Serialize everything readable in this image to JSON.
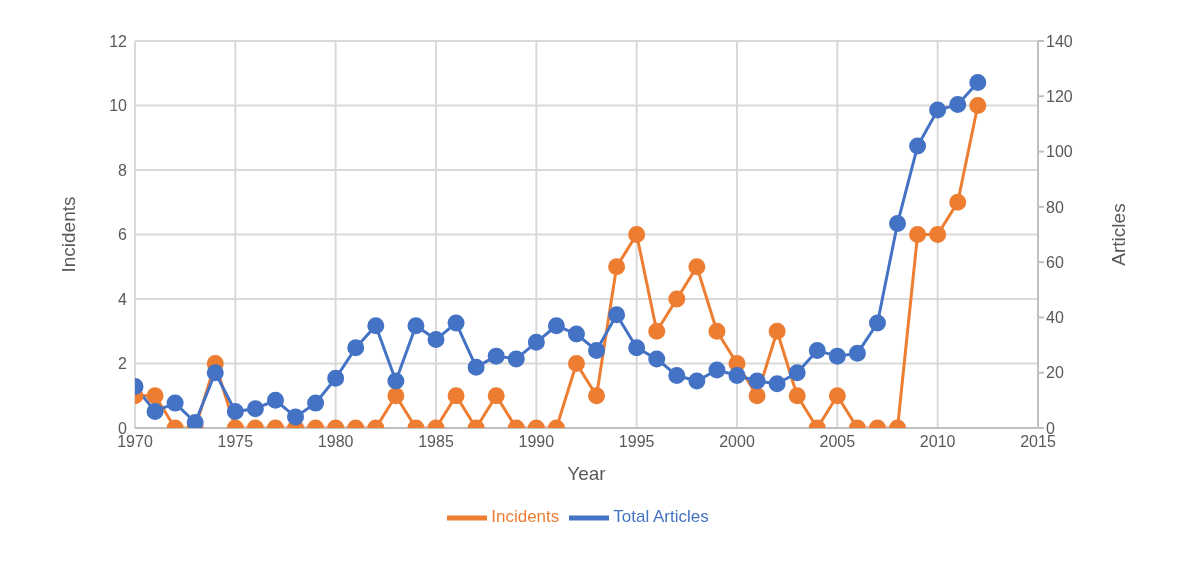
{
  "chart_data": {
    "type": "line",
    "xlabel": "Year",
    "ylabel": "Incidents",
    "y2label": "Articles",
    "x": [
      1970,
      1971,
      1972,
      1973,
      1974,
      1975,
      1976,
      1977,
      1978,
      1979,
      1980,
      1981,
      1982,
      1983,
      1984,
      1985,
      1986,
      1987,
      1988,
      1989,
      1990,
      1991,
      1992,
      1993,
      1994,
      1995,
      1996,
      1997,
      1998,
      1999,
      2000,
      2001,
      2002,
      2003,
      2004,
      2005,
      2006,
      2007,
      2008,
      2009,
      2010,
      2011,
      2012
    ],
    "series": [
      {
        "name": "Incidents",
        "color": "#ed7d31",
        "values": [
          1,
          1,
          0,
          0,
          2,
          0,
          0,
          0,
          0,
          0,
          0,
          0,
          0,
          1,
          0,
          0,
          1,
          0,
          1,
          0,
          0,
          0,
          2,
          1,
          5,
          6,
          3,
          4,
          5,
          3,
          2,
          1,
          3,
          1,
          0,
          1,
          0,
          0,
          0,
          6,
          6,
          7,
          10
        ]
      },
      {
        "name": "Total Articles",
        "color": "#4472c4",
        "axis": "y2",
        "values": [
          15,
          6,
          9,
          2,
          20,
          6,
          7,
          10,
          4,
          9,
          18,
          29,
          37,
          17,
          37,
          32,
          38,
          22,
          26,
          25,
          31,
          37,
          34,
          28,
          41,
          29,
          25,
          19,
          17,
          21,
          19,
          17,
          16,
          20,
          28,
          26,
          27,
          38,
          74,
          102,
          115,
          117,
          125
        ]
      }
    ],
    "xlim": [
      1970,
      2015
    ],
    "xticks": [
      1970,
      1975,
      1980,
      1985,
      1990,
      1995,
      2000,
      2005,
      2010,
      2015
    ],
    "ylim": [
      0,
      12
    ],
    "yticks": [
      0,
      2,
      4,
      6,
      8,
      10,
      12
    ],
    "y2lim": [
      0,
      140
    ],
    "y2ticks": [
      0,
      20,
      40,
      60,
      80,
      100,
      120,
      140
    ],
    "grid": true,
    "legend": "bottom",
    "marker": "circle",
    "line_style": "solid"
  }
}
